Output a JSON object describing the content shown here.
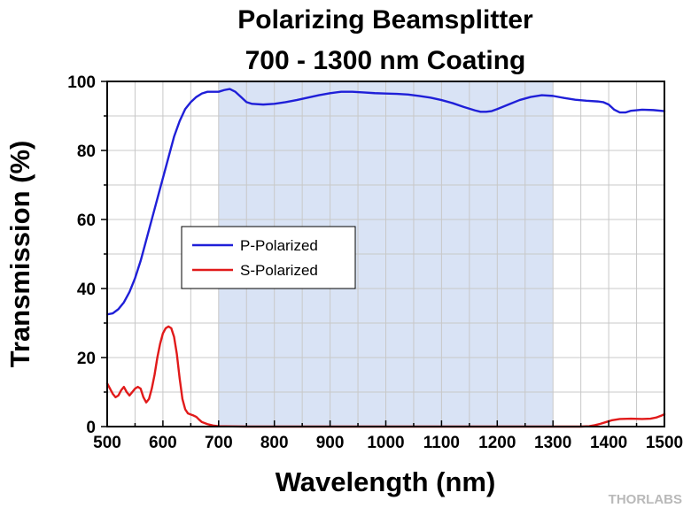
{
  "chart_data": {
    "type": "line",
    "title": "Polarizing Beamsplitter",
    "subtitle": "700 - 1300 nm Coating",
    "xlabel": "Wavelength (nm)",
    "ylabel": "Transmission (%)",
    "xlim": [
      500,
      1500
    ],
    "ylim": [
      0,
      100
    ],
    "xticks": [
      500,
      600,
      700,
      800,
      900,
      1000,
      1100,
      1200,
      1300,
      1400,
      1500
    ],
    "yticks": [
      0,
      20,
      40,
      60,
      80,
      100
    ],
    "grid": true,
    "highlight_range": [
      700,
      1300
    ],
    "highlight_color": "#d9e3f5",
    "legend_position": "middle-left",
    "series": [
      {
        "name": "P-Polarized",
        "color": "#1f1fd8",
        "points": [
          [
            500,
            32.5
          ],
          [
            510,
            32.8
          ],
          [
            520,
            34
          ],
          [
            530,
            36
          ],
          [
            540,
            39
          ],
          [
            550,
            43
          ],
          [
            560,
            48
          ],
          [
            570,
            54
          ],
          [
            580,
            60
          ],
          [
            590,
            66
          ],
          [
            600,
            72
          ],
          [
            610,
            78
          ],
          [
            620,
            84
          ],
          [
            630,
            88.5
          ],
          [
            640,
            92
          ],
          [
            650,
            94
          ],
          [
            660,
            95.5
          ],
          [
            670,
            96.5
          ],
          [
            680,
            97
          ],
          [
            690,
            97
          ],
          [
            700,
            97
          ],
          [
            710,
            97.5
          ],
          [
            720,
            97.8
          ],
          [
            730,
            97
          ],
          [
            740,
            95.5
          ],
          [
            750,
            94
          ],
          [
            760,
            93.5
          ],
          [
            780,
            93.3
          ],
          [
            800,
            93.5
          ],
          [
            820,
            94
          ],
          [
            840,
            94.6
          ],
          [
            860,
            95.3
          ],
          [
            880,
            96
          ],
          [
            900,
            96.6
          ],
          [
            920,
            97
          ],
          [
            940,
            97
          ],
          [
            960,
            96.8
          ],
          [
            980,
            96.6
          ],
          [
            1000,
            96.5
          ],
          [
            1020,
            96.4
          ],
          [
            1040,
            96.2
          ],
          [
            1060,
            95.8
          ],
          [
            1080,
            95.3
          ],
          [
            1100,
            94.6
          ],
          [
            1120,
            93.7
          ],
          [
            1140,
            92.6
          ],
          [
            1160,
            91.6
          ],
          [
            1170,
            91.2
          ],
          [
            1180,
            91.2
          ],
          [
            1190,
            91.4
          ],
          [
            1200,
            92
          ],
          [
            1220,
            93.3
          ],
          [
            1240,
            94.6
          ],
          [
            1260,
            95.5
          ],
          [
            1280,
            96
          ],
          [
            1300,
            95.8
          ],
          [
            1320,
            95.2
          ],
          [
            1340,
            94.7
          ],
          [
            1360,
            94.4
          ],
          [
            1380,
            94.2
          ],
          [
            1390,
            94
          ],
          [
            1400,
            93.3
          ],
          [
            1410,
            91.8
          ],
          [
            1420,
            91
          ],
          [
            1430,
            91
          ],
          [
            1440,
            91.5
          ],
          [
            1460,
            91.8
          ],
          [
            1480,
            91.7
          ],
          [
            1500,
            91.4
          ]
        ]
      },
      {
        "name": "S-Polarized",
        "color": "#e11a1a",
        "points": [
          [
            500,
            12.5
          ],
          [
            505,
            11
          ],
          [
            510,
            9.5
          ],
          [
            515,
            8.5
          ],
          [
            520,
            9
          ],
          [
            525,
            10.5
          ],
          [
            530,
            11.5
          ],
          [
            535,
            10
          ],
          [
            540,
            9
          ],
          [
            545,
            10
          ],
          [
            550,
            11
          ],
          [
            555,
            11.5
          ],
          [
            560,
            11
          ],
          [
            565,
            8.5
          ],
          [
            570,
            7
          ],
          [
            575,
            8
          ],
          [
            580,
            11
          ],
          [
            585,
            15
          ],
          [
            590,
            20
          ],
          [
            595,
            24
          ],
          [
            600,
            27
          ],
          [
            605,
            28.5
          ],
          [
            610,
            29
          ],
          [
            615,
            28.5
          ],
          [
            620,
            26
          ],
          [
            625,
            21
          ],
          [
            630,
            14
          ],
          [
            635,
            8
          ],
          [
            640,
            5
          ],
          [
            645,
            3.8
          ],
          [
            650,
            3.5
          ],
          [
            655,
            3.2
          ],
          [
            660,
            2.8
          ],
          [
            665,
            2
          ],
          [
            670,
            1.3
          ],
          [
            680,
            0.7
          ],
          [
            690,
            0.3
          ],
          [
            700,
            0.1
          ],
          [
            750,
            0
          ],
          [
            800,
            0
          ],
          [
            900,
            0
          ],
          [
            1000,
            0
          ],
          [
            1100,
            0
          ],
          [
            1200,
            0
          ],
          [
            1300,
            0
          ],
          [
            1350,
            0
          ],
          [
            1365,
            0.1
          ],
          [
            1375,
            0.4
          ],
          [
            1385,
            0.8
          ],
          [
            1395,
            1.3
          ],
          [
            1405,
            1.8
          ],
          [
            1420,
            2.2
          ],
          [
            1440,
            2.3
          ],
          [
            1460,
            2.2
          ],
          [
            1475,
            2.3
          ],
          [
            1485,
            2.6
          ],
          [
            1495,
            3.2
          ],
          [
            1500,
            3.6
          ]
        ]
      }
    ]
  },
  "brand_text": "THORLABS"
}
